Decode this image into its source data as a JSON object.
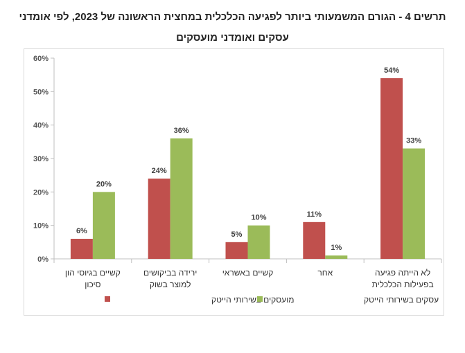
{
  "chart_data": {
    "type": "bar",
    "title_lines": [
      "תרשים 4 - הגורם המשמעותי ביותר לפגיעה הכלכלית במחצית הראשונה של 2023, לפי אומדני",
      "עסקים ואומדני מועסקים"
    ],
    "categories": [
      [
        "קשיים בגיוסי הון",
        "סיכון"
      ],
      [
        "ירידה בביקושים",
        "למוצר בשוק"
      ],
      [
        "קשיים באשראי"
      ],
      [
        "אחר"
      ],
      [
        "לא הייתה פגיעה",
        "בפעילות הכלכלית"
      ]
    ],
    "series": [
      {
        "name": "מועסקים בשירותי הייטק",
        "color": "#c0504d",
        "values": [
          6,
          24,
          5,
          11,
          54
        ],
        "labels": [
          "6%",
          "24%",
          "5%",
          "11%",
          "54%"
        ]
      },
      {
        "name": "עסקים בשירותי הייטק",
        "color": "#9bbb59",
        "values": [
          20,
          36,
          10,
          1,
          33
        ],
        "labels": [
          "20%",
          "36%",
          "10%",
          "1%",
          "33%"
        ]
      }
    ],
    "ylim": [
      0,
      60
    ],
    "yticks": [
      0,
      10,
      20,
      30,
      40,
      50,
      60
    ],
    "ytick_labels": [
      "0%",
      "10%",
      "20%",
      "30%",
      "40%",
      "50%",
      "60%"
    ],
    "grid": false,
    "legend_position": "bottom"
  }
}
